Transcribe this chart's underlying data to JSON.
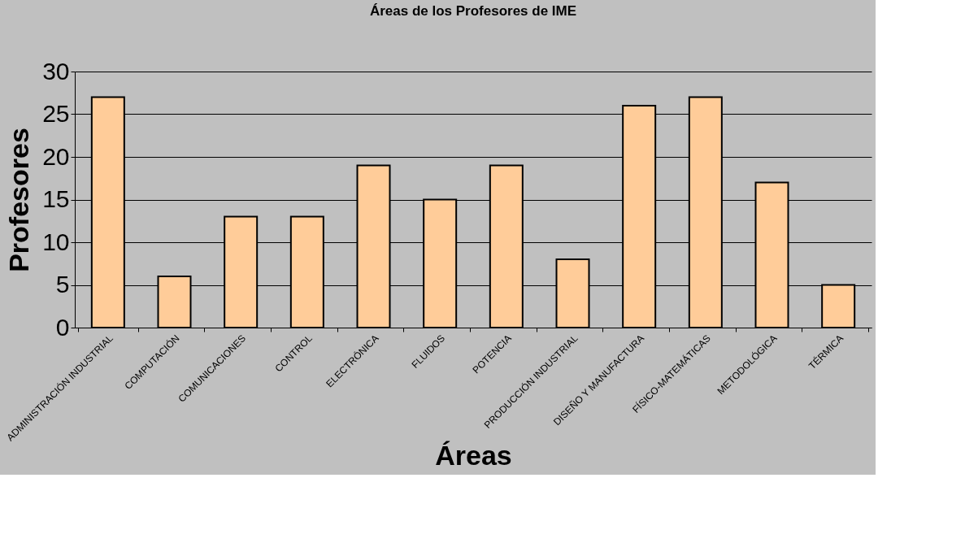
{
  "chart_data": {
    "type": "bar",
    "title": "Áreas de los Profesores de IME",
    "xlabel": "Áreas",
    "ylabel": "Profesores",
    "categories": [
      "ADMINISTRACIÓN INDUSTRIAL",
      "COMPUTACIÓN",
      "COMUNICACIONES",
      "CONTROL",
      "ELECTRÓNICA",
      "FLUIDOS",
      "POTENCIA",
      "PRODUCCIÓN INDUSTRIAL",
      "DISEÑO Y MANUFACTURA",
      "FÍSICO-MATEMÁTICAS",
      "METODOLÓGICA",
      "TÉRMICA"
    ],
    "values": [
      27,
      6,
      13,
      13,
      19,
      15,
      19,
      8,
      26,
      27,
      17,
      5
    ],
    "color": "#ffcc99",
    "ylim": [
      0,
      30
    ],
    "yticks": [
      0,
      5,
      10,
      15,
      20,
      25,
      30
    ],
    "grid": "y"
  }
}
